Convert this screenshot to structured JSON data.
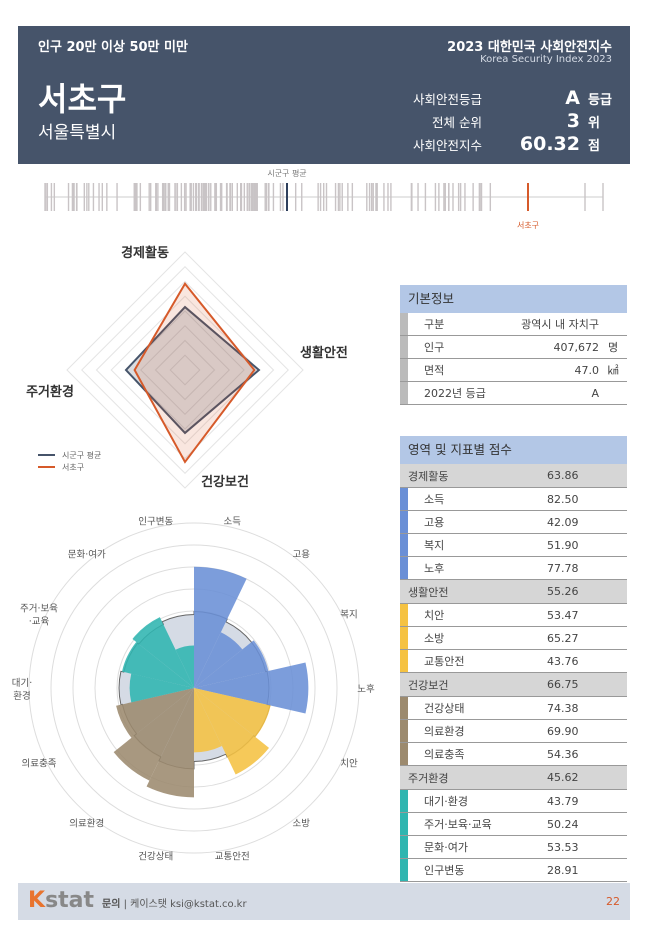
{
  "header": {
    "category": "인구 20만 이상 50만 미만",
    "report_title": "2023 대한민국 사회안전지수",
    "report_subtitle": "Korea Security Index 2023",
    "district": "서초구",
    "city": "서울특별시",
    "stats": [
      {
        "label": "사회안전등급",
        "value": "A",
        "unit": "등급"
      },
      {
        "label": "전체 순위",
        "value": "3",
        "unit": "위"
      },
      {
        "label": "사회안전지수",
        "value": "60.32",
        "unit": "점"
      }
    ]
  },
  "strip": {
    "avg_label": "시군구 평균",
    "district_label": "서초구",
    "avg_color": "#2e3f5c",
    "district_color": "#d65a2a"
  },
  "radar": {
    "axes": [
      "경제활동",
      "생활안전",
      "건강보건",
      "주거환경"
    ],
    "range": [
      20,
      80
    ],
    "series": [
      {
        "name": "시군구 평균",
        "values": [
          52,
          57.6,
          52,
          50
        ],
        "color": "#46546a"
      },
      {
        "name": "서초구",
        "values": [
          63.86,
          55.26,
          66.75,
          45.62
        ],
        "color": "#d65a2a"
      }
    ]
  },
  "polar": {
    "labels": [
      "소득",
      "고용",
      "복지",
      "노후",
      "치안",
      "소방",
      "교통안전",
      "건강상태",
      "의료환경",
      "의료충족",
      "대기·\n환경",
      "주거·보육\n·교육",
      "문화·여가",
      "인구변동"
    ],
    "values": [
      82.5,
      42.09,
      51.9,
      77.78,
      53.47,
      65.27,
      43.76,
      74.38,
      69.9,
      54.36,
      43.79,
      50.24,
      53.53,
      28.91
    ],
    "avg": [
      52,
      50,
      50,
      51,
      53,
      52,
      50,
      55,
      52,
      50,
      51,
      49,
      48,
      50
    ],
    "colors": [
      "#6a8fd6",
      "#6a8fd6",
      "#6a8fd6",
      "#6a8fd6",
      "#f5c242",
      "#f5c242",
      "#f5c242",
      "#9c8a6e",
      "#9c8a6e",
      "#9c8a6e",
      "#2fb5b0",
      "#2fb5b0",
      "#2fb5b0",
      "#2fb5b0"
    ]
  },
  "basic": {
    "title": "기본정보",
    "rows": [
      {
        "k": "구분",
        "v": "광역시 내 자치구",
        "u": ""
      },
      {
        "k": "인구",
        "v": "407,672",
        "u": "명"
      },
      {
        "k": "면적",
        "v": "47.0",
        "u": "㎢"
      },
      {
        "k": "2022년 등급",
        "v": "A",
        "u": ""
      }
    ]
  },
  "scores": {
    "title": "영역 및 지표별 점수",
    "sections": [
      {
        "name": "경제활동",
        "score": "63.86",
        "color": "#6a8fd6",
        "items": [
          {
            "n": "소득",
            "s": "82.50"
          },
          {
            "n": "고용",
            "s": "42.09"
          },
          {
            "n": "복지",
            "s": "51.90"
          },
          {
            "n": "노후",
            "s": "77.78"
          }
        ]
      },
      {
        "name": "생활안전",
        "score": "55.26",
        "color": "#f5c242",
        "items": [
          {
            "n": "치안",
            "s": "53.47"
          },
          {
            "n": "소방",
            "s": "65.27"
          },
          {
            "n": "교통안전",
            "s": "43.76"
          }
        ]
      },
      {
        "name": "건강보건",
        "score": "66.75",
        "color": "#9c8a6e",
        "items": [
          {
            "n": "건강상태",
            "s": "74.38"
          },
          {
            "n": "의료환경",
            "s": "69.90"
          },
          {
            "n": "의료충족",
            "s": "54.36"
          }
        ]
      },
      {
        "name": "주거환경",
        "score": "45.62",
        "color": "#2fb5b0",
        "items": [
          {
            "n": "대기·환경",
            "s": "43.79"
          },
          {
            "n": "주거·보육·교육",
            "s": "50.24"
          },
          {
            "n": "문화·여가",
            "s": "53.53"
          },
          {
            "n": "인구변동",
            "s": "28.91"
          }
        ]
      }
    ]
  },
  "footer": {
    "logo": "Kstat",
    "contact_label": "문의",
    "contact": "케이스탯 ksi@kstat.co.kr",
    "page": "22"
  }
}
